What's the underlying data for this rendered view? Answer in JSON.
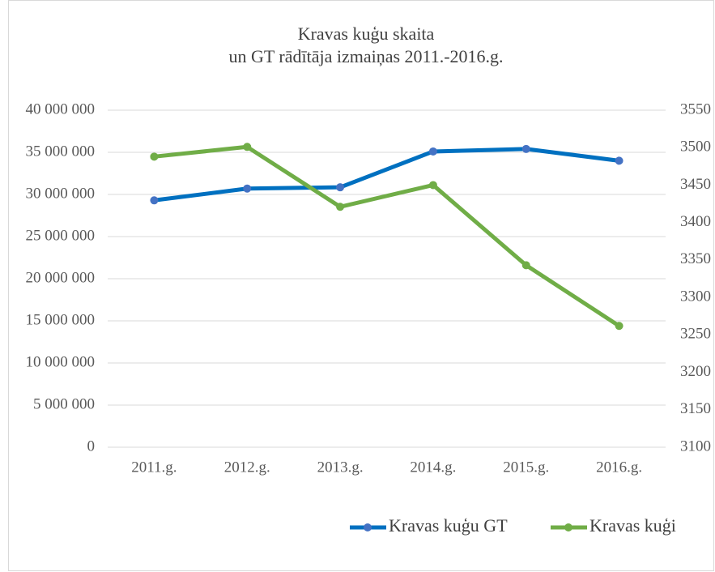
{
  "chart_data": {
    "type": "line",
    "title": [
      "Kravas kuģu skaita",
      "un GT rādītāja izmaiņas 2011.-2016.g."
    ],
    "categories": [
      "2011.g.",
      "2012.g.",
      "2013.g.",
      "2014.g.",
      "2015.g.",
      "2016.g."
    ],
    "series": [
      {
        "name": "Kravas kuģu GT",
        "color": "#0070c0",
        "marker_color": "#4472c4",
        "axis": "y",
        "values": [
          29300000,
          30700000,
          30850000,
          35100000,
          35400000,
          34000000
        ]
      },
      {
        "name": "Kravas kuģi",
        "color": "#70ad47",
        "marker_color": "#70ad47",
        "axis": "y2",
        "values": [
          3488,
          3501,
          3421,
          3450,
          3343,
          3262
        ]
      }
    ],
    "ylim": [
      0,
      40000000
    ],
    "yticks": [
      0,
      {
        "value": 5000000,
        "label": "5 000 000"
      },
      {
        "value": 10000000,
        "label": "10 000 000"
      },
      {
        "value": 15000000,
        "label": "15 000 000"
      },
      {
        "value": 20000000,
        "label": "20 000 000"
      },
      {
        "value": 25000000,
        "label": "25 000 000"
      },
      {
        "value": 30000000,
        "label": "30 000 000"
      },
      {
        "value": 35000000,
        "label": "35 000 000"
      },
      {
        "value": 40000000,
        "label": "40 000 000"
      }
    ],
    "y2lim": [
      3100,
      3550
    ],
    "y2ticks": [
      3100,
      3150,
      3200,
      3250,
      3300,
      3350,
      3400,
      3450,
      3500,
      3550
    ],
    "grid": true,
    "legend": "bottom-right"
  }
}
